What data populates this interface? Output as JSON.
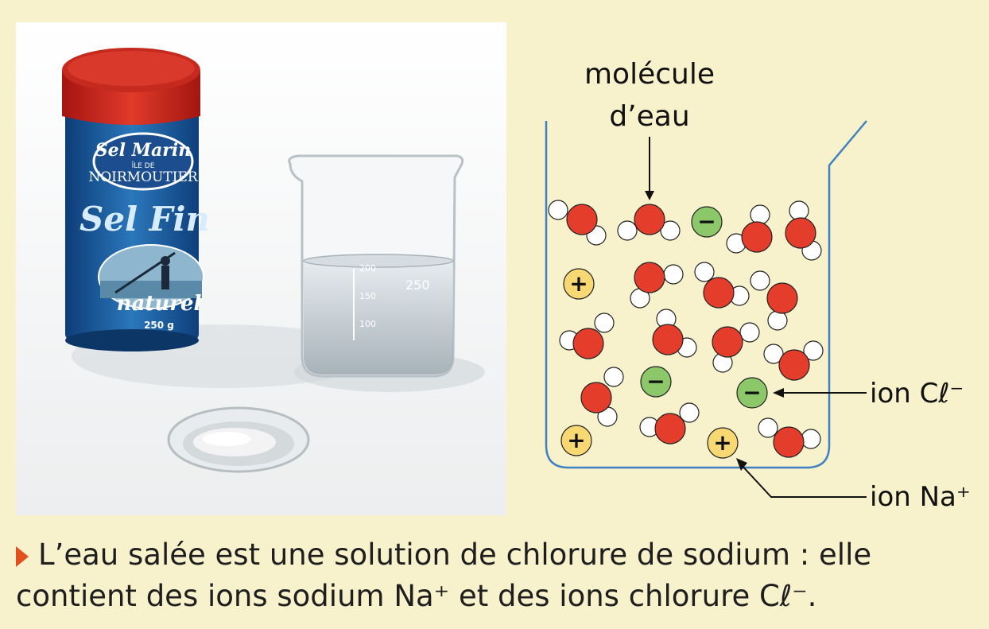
{
  "photo": {
    "can_brand_line1": "Sel Marin",
    "can_brand_line2": "ÎLE DE",
    "can_brand_line3": "NOIRMOUTIER",
    "can_product": "Sel Fin",
    "can_variant": "naturel",
    "can_weight": "250 g",
    "beaker_marks": [
      "200",
      "150",
      "100"
    ],
    "beaker_volume": "250"
  },
  "diagram": {
    "label_water_line1": "molécule",
    "label_water_line2": "d’eau",
    "label_chloride": "ion Cℓ⁻",
    "label_sodium": "ion Na⁺",
    "plus_sign": "+",
    "minus_sign": "−",
    "colors": {
      "oxygen": "#e53d2c",
      "hydrogen": "#ffffff",
      "chloride": "#8cc86a",
      "sodium": "#f7d873",
      "beaker": "#3e82c4"
    }
  },
  "caption": {
    "line1": "L’eau salée est une solution de chlorure de sodium : elle",
    "line2": "contient des ions sodium Na⁺ et des ions chlorure Cℓ⁻."
  }
}
